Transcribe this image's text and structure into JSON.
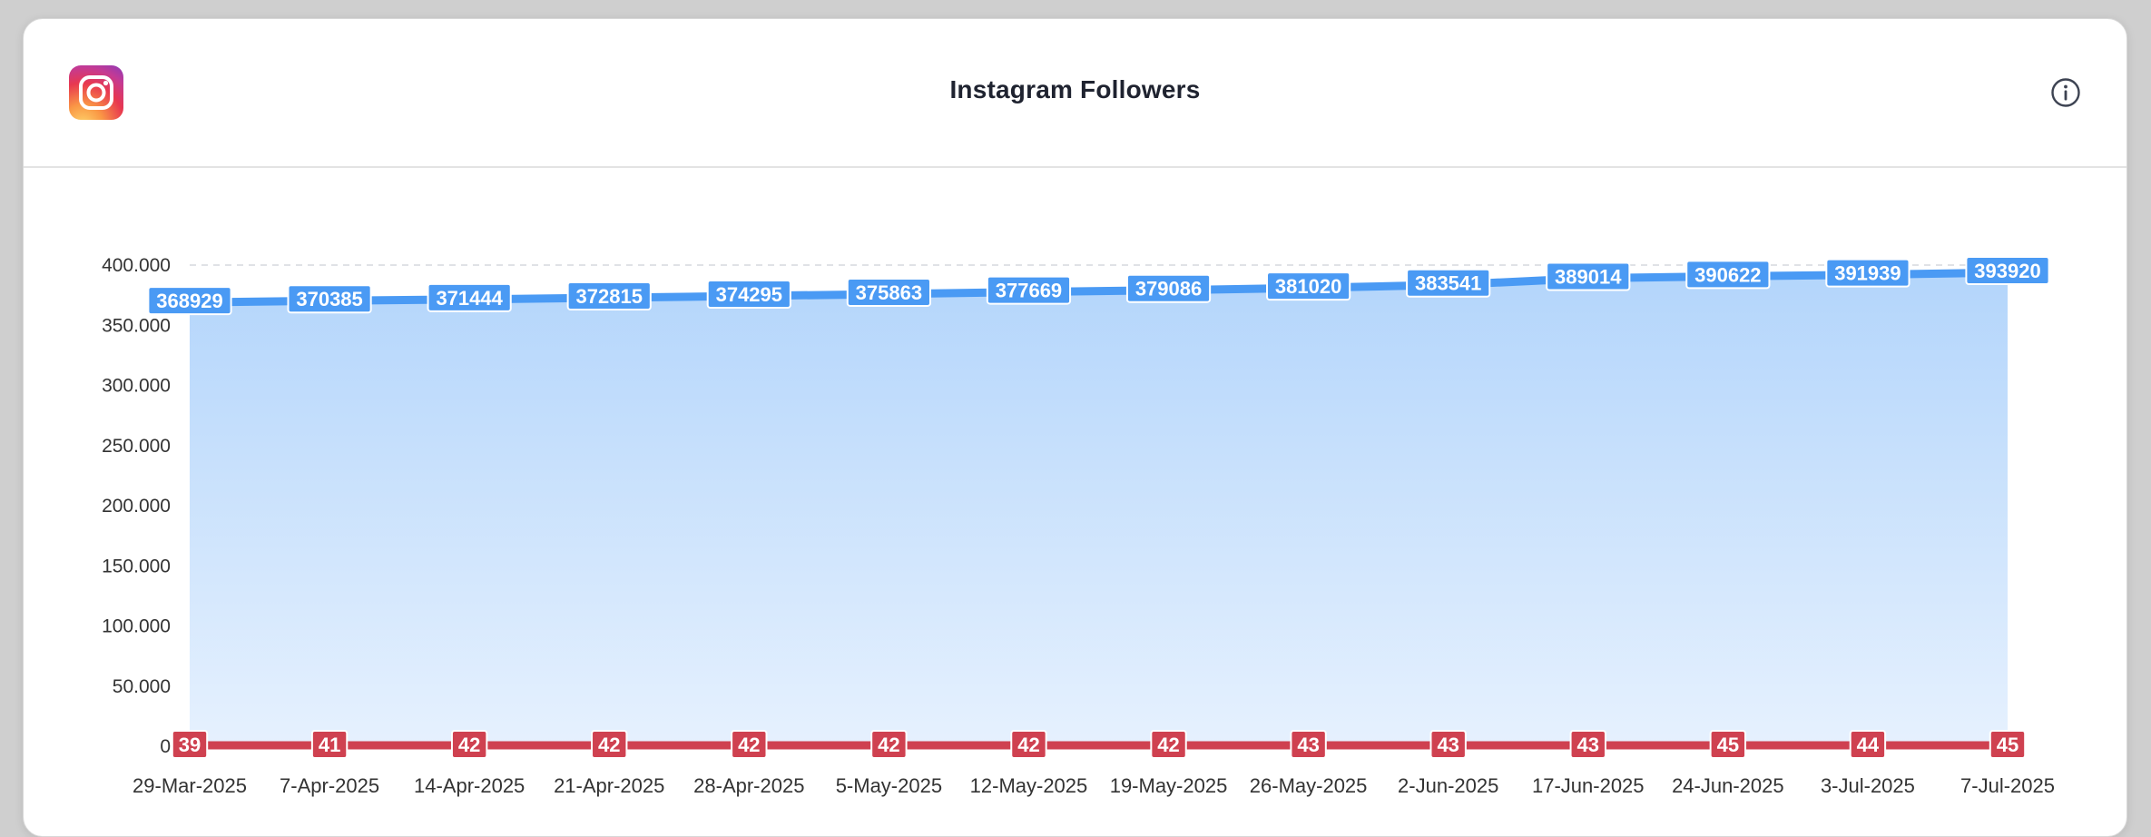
{
  "header": {
    "title": "Instagram Followers",
    "logo_icon": "instagram-logo-icon",
    "info_icon": "info-circle-icon"
  },
  "colors": {
    "followers_line": "#4a9af4",
    "followers_area_top": "#b3d5fb",
    "followers_area_bottom": "#e6f1fe",
    "second_line": "#cf4150",
    "grid": "#d6d9de",
    "axis_text": "#333333"
  },
  "chart_data": {
    "type": "line",
    "title": "Instagram Followers",
    "xlabel": "",
    "ylabel": "",
    "ylim": [
      0,
      400000
    ],
    "yticks": [
      {
        "value": 0,
        "label": "0"
      },
      {
        "value": 50000,
        "label": "50.000"
      },
      {
        "value": 100000,
        "label": "100.000"
      },
      {
        "value": 150000,
        "label": "150.000"
      },
      {
        "value": 200000,
        "label": "200.000"
      },
      {
        "value": 250000,
        "label": "250.000"
      },
      {
        "value": 300000,
        "label": "300.000"
      },
      {
        "value": 350000,
        "label": "350.000"
      },
      {
        "value": 400000,
        "label": "400.000"
      }
    ],
    "grid": true,
    "categories": [
      "29-Mar-2025",
      "7-Apr-2025",
      "14-Apr-2025",
      "21-Apr-2025",
      "28-Apr-2025",
      "5-May-2025",
      "12-May-2025",
      "19-May-2025",
      "26-May-2025",
      "2-Jun-2025",
      "17-Jun-2025",
      "24-Jun-2025",
      "3-Jul-2025",
      "7-Jul-2025"
    ],
    "series": [
      {
        "style": "area",
        "values": [
          368929,
          370385,
          371444,
          372815,
          374295,
          375863,
          377669,
          379086,
          381020,
          383541,
          389014,
          390622,
          391939,
          393920
        ]
      },
      {
        "style": "line",
        "values": [
          39,
          41,
          42,
          42,
          42,
          42,
          42,
          42,
          43,
          43,
          43,
          45,
          44,
          45
        ]
      }
    ]
  }
}
